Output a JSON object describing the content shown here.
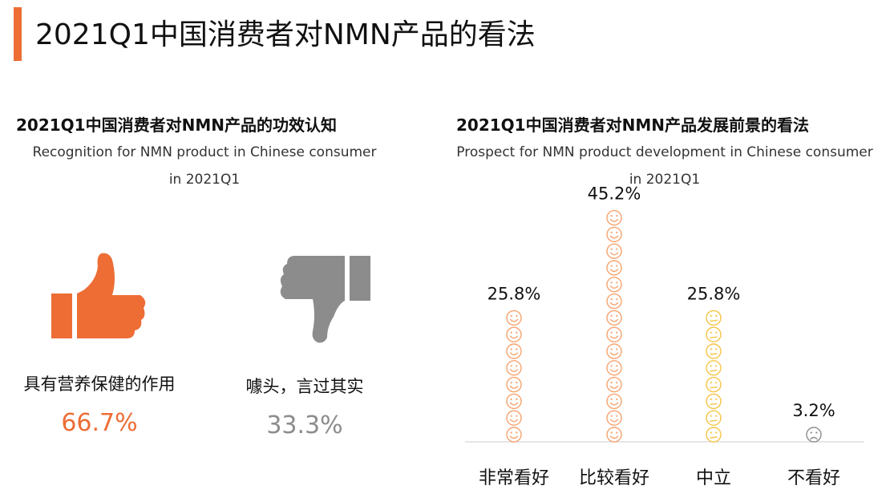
{
  "page_title": "2021Q1中国消费者对NMN产品的看法",
  "colors": {
    "accent": "#ED6D35",
    "orange": "#ED6D35",
    "peach": "#F5A36E",
    "yellow": "#F6C445",
    "gray": "#8C8C8C"
  },
  "left_section": {
    "title": "2021Q1中国消费者对NMN产品的功效认知",
    "subtitle_line1": "Recognition for NMN product in Chinese consumer",
    "subtitle_line2": "in 2021Q1",
    "options": [
      {
        "icon": "thumbs-up-icon",
        "label": "具有营养保健的作用",
        "value": "66.7%"
      },
      {
        "icon": "thumbs-down-icon",
        "label": "噱头，言过其实",
        "value": "33.3%"
      }
    ]
  },
  "right_section": {
    "title": "2021Q1中国消费者对NMN产品发展前景的看法",
    "subtitle_line1": "Prospect for NMN product development in Chinese consumer",
    "subtitle_line2": "in 2021Q1"
  },
  "chart_data": [
    {
      "type": "bar",
      "title": "2021Q1中国消费者对NMN产品的功效认知",
      "categories": [
        "具有营养保健的作用",
        "噱头，言过其实"
      ],
      "values": [
        66.7,
        33.3
      ],
      "value_labels": [
        "66.7%",
        "33.3%"
      ],
      "unit": "%",
      "encoding": "thumbs-up / thumbs-down icons"
    },
    {
      "type": "bar",
      "title": "2021Q1中国消费者对NMN产品发展前景的看法",
      "categories": [
        "非常看好",
        "比较看好",
        "中立",
        "不看好"
      ],
      "values": [
        25.8,
        45.2,
        25.8,
        3.2
      ],
      "value_labels": [
        "25.8%",
        "45.2%",
        "25.8%",
        "3.2%"
      ],
      "unit": "%",
      "icon_per_unit_percent": 3.2,
      "icon_types": [
        "smile-icon",
        "smile-icon",
        "neutral-face-icon",
        "sad-face-icon"
      ],
      "icon_colors": [
        "#F5A36E",
        "#F5A36E",
        "#F6C445",
        "#8C8C8C"
      ],
      "grid": false
    }
  ]
}
